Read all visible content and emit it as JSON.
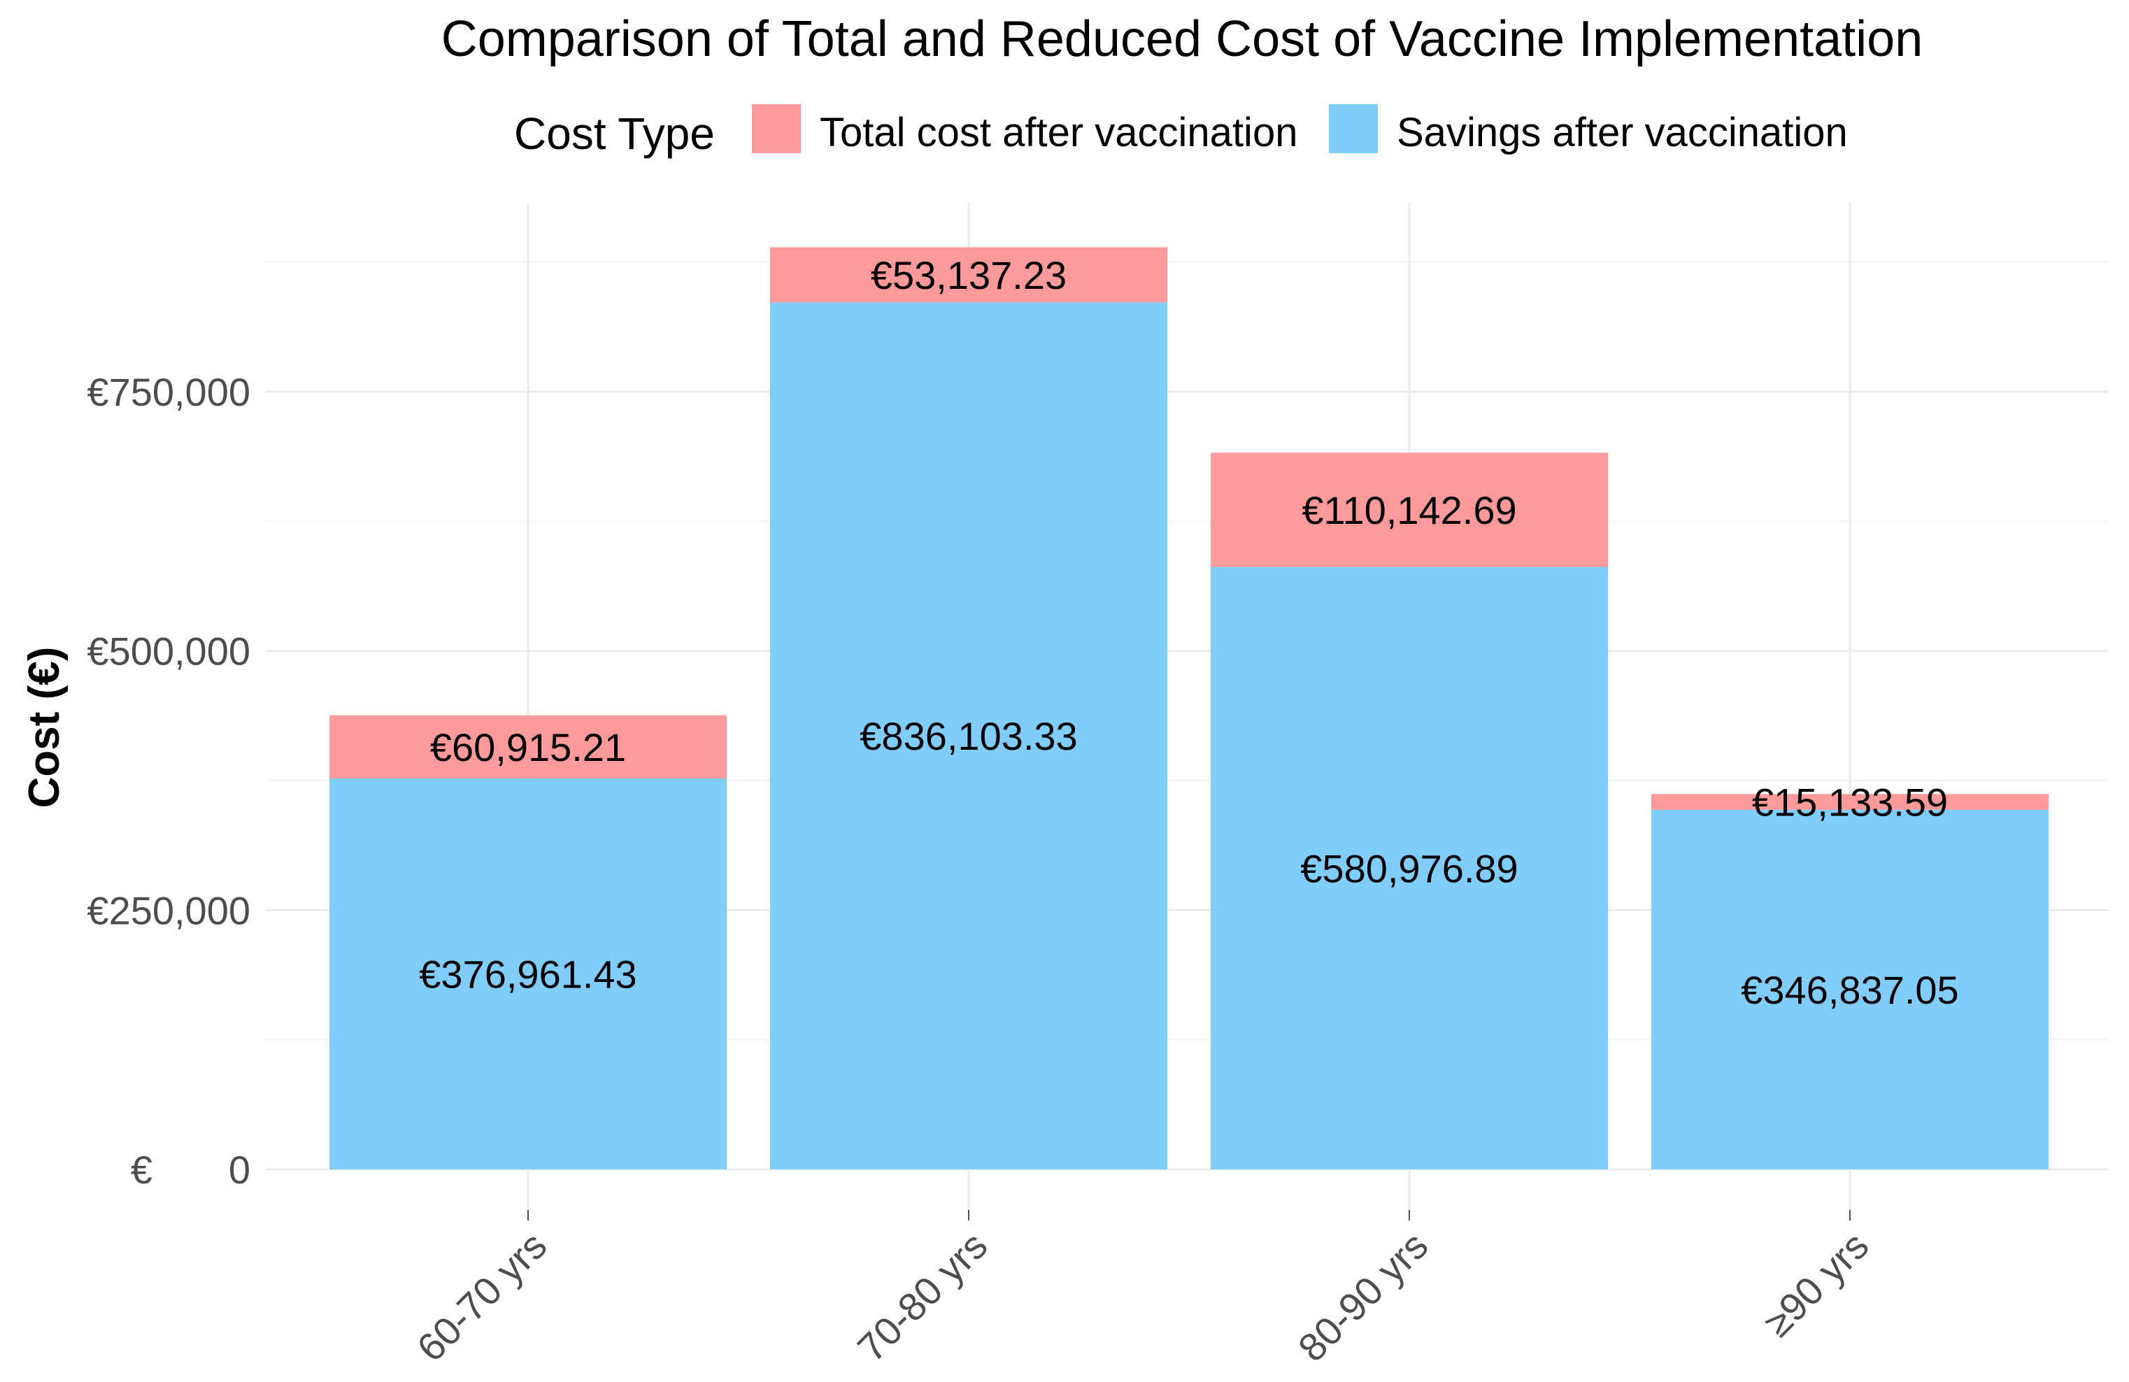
{
  "chart_data": {
    "type": "bar",
    "stacked": true,
    "title": "Comparison of Total and Reduced Cost of Vaccine Implementation",
    "xlabel": "",
    "ylabel": "Cost (€)",
    "legend": {
      "title": "Cost Type",
      "placement": "top",
      "entries": [
        "Total cost after vaccination",
        "Savings after vaccination"
      ]
    },
    "categories": [
      "60-70 yrs",
      "70-80 yrs",
      "80-90 yrs",
      "≥90 yrs"
    ],
    "series": [
      {
        "name": "Savings after vaccination",
        "color": "#80CDFC",
        "values": [
          376961.43,
          836103.33,
          580976.89,
          346837.05
        ],
        "labels": [
          "€376,961.43",
          "€836,103.33",
          "€580,976.89",
          "€346,837.05"
        ]
      },
      {
        "name": "Total cost after vaccination",
        "color": "#FB9A99",
        "values": [
          60915.21,
          53137.23,
          110142.69,
          15133.59
        ],
        "labels": [
          "€60,915.21",
          "€53,137.23",
          "€110,142.69",
          "€15,133.59"
        ]
      }
    ],
    "yticks": [
      0,
      250000,
      500000,
      750000
    ],
    "ytick_labels": [
      "€       0",
      "€250,000",
      "€500,000",
      "€750,000"
    ],
    "ylim": [
      0,
      950000
    ],
    "grid": true
  }
}
